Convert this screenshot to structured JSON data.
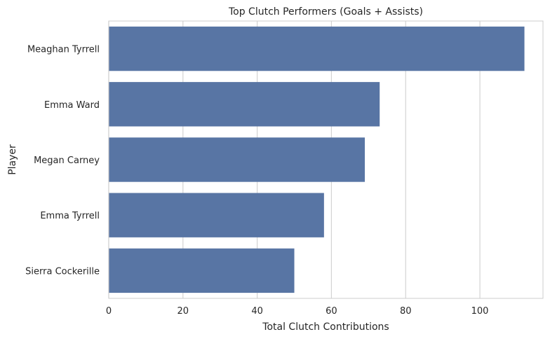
{
  "chart_data": {
    "type": "bar",
    "orientation": "horizontal",
    "title": "Top Clutch Performers (Goals + Assists)",
    "xlabel": "Total Clutch Contributions",
    "ylabel": "Player",
    "categories": [
      "Meaghan Tyrrell",
      "Emma Ward",
      "Megan Carney",
      "Emma Tyrrell",
      "Sierra Cockerille"
    ],
    "values": [
      112,
      73,
      69,
      58,
      50
    ],
    "xlim": [
      0,
      117
    ],
    "xticks": [
      0,
      20,
      40,
      60,
      80,
      100
    ],
    "grid": "vertical",
    "colors": {
      "bar": "#5875a4",
      "grid": "#d3d3d3",
      "spine": "#cccccc",
      "text": "#262626"
    }
  }
}
